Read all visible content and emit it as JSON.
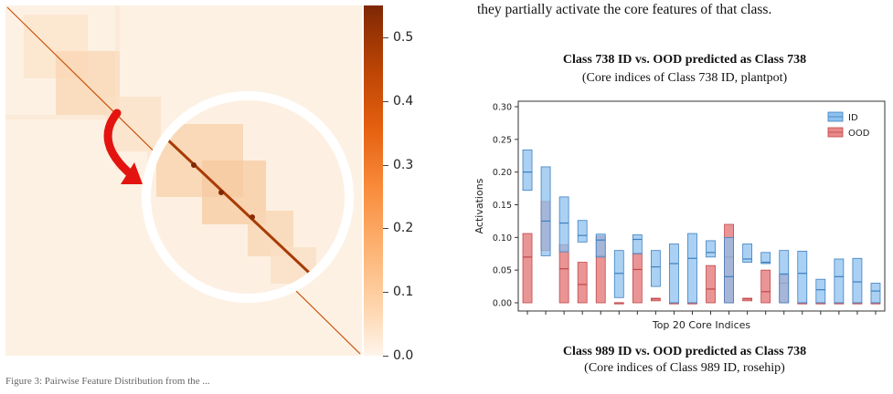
{
  "top_text": "they partially activate the core features of that class.",
  "left_caption": "Figure 3: Pairwise Feature Distribution from the ...",
  "heatmap": {
    "colorbar_ticks": [
      "0.5",
      "0.4",
      "0.3",
      "0.2",
      "0.1",
      "0.0"
    ],
    "colormap": "oranges"
  },
  "chart_data": {
    "type": "bar",
    "title": "Class 738 ID vs. OOD predicted as Class 738",
    "subtitle": "(Core indices of Class 738 ID, plantpot)",
    "xlabel": "Top 20 Core Indices",
    "ylabel": "Activations",
    "ylim": [
      0,
      0.31
    ],
    "yticks": [
      "0.00",
      "0.05",
      "0.10",
      "0.15",
      "0.20",
      "0.25",
      "0.30"
    ],
    "legend": {
      "position": "top-right",
      "entries": [
        "ID",
        "OOD"
      ]
    },
    "colors": {
      "ID": "#8ec1ef",
      "OOD": "#e8898a",
      "ID_edge": "#3f7fc0",
      "OOD_edge": "#c0474a"
    },
    "series": [
      {
        "name": "ID",
        "ranges": [
          [
            0.172,
            0.234,
            0.2
          ],
          [
            0.072,
            0.208,
            0.125
          ],
          [
            0.078,
            0.162,
            0.122
          ],
          [
            0.093,
            0.126,
            0.103
          ],
          [
            0.07,
            0.105,
            0.096
          ],
          [
            0.008,
            0.08,
            0.045
          ],
          [
            0.075,
            0.104,
            0.097
          ],
          [
            0.025,
            0.08,
            0.055
          ],
          [
            0.0,
            0.09,
            0.06
          ],
          [
            0.0,
            0.106,
            0.068
          ],
          [
            0.07,
            0.095,
            0.077
          ],
          [
            0.0,
            0.1,
            0.04
          ],
          [
            0.062,
            0.09,
            0.067
          ],
          [
            0.06,
            0.077,
            0.062
          ],
          [
            0.0,
            0.08,
            0.044
          ],
          [
            0.0,
            0.079,
            0.045
          ],
          [
            0.0,
            0.036,
            0.02
          ],
          [
            0.0,
            0.067,
            0.04
          ],
          [
            0.0,
            0.068,
            0.032
          ],
          [
            0.0,
            0.03,
            0.018
          ]
        ]
      },
      {
        "name": "OOD",
        "ranges": [
          [
            0.0,
            0.106,
            0.07
          ],
          [
            0.08,
            0.155,
            0.125
          ],
          [
            0.0,
            0.089,
            0.052
          ],
          [
            0.0,
            0.062,
            0.028
          ],
          [
            0.0,
            0.102,
            0.072
          ],
          [
            0.0,
            0.0,
            0.0
          ],
          [
            0.0,
            0.076,
            0.051
          ],
          [
            0.003,
            0.007,
            0.006
          ],
          [
            0.0,
            0.0,
            0.0
          ],
          [
            0.0,
            0.0,
            0.0
          ],
          [
            0.0,
            0.057,
            0.021
          ],
          [
            0.0,
            0.12,
            0.07
          ],
          [
            0.003,
            0.007,
            0.006
          ],
          [
            0.0,
            0.05,
            0.017
          ],
          [
            0.0,
            0.042,
            0.03
          ],
          [
            0.0,
            0.0,
            0.0
          ],
          [
            0.0,
            0.0,
            0.0
          ],
          [
            0.0,
            0.0,
            0.0
          ],
          [
            0.0,
            0.0,
            0.0
          ],
          [
            0.0,
            0.0,
            0.0
          ]
        ]
      }
    ]
  },
  "bottom_chart": {
    "title": "Class 989 ID vs. OOD predicted as Class 738",
    "subtitle": "(Core indices of Class 989 ID, rosehip)"
  }
}
